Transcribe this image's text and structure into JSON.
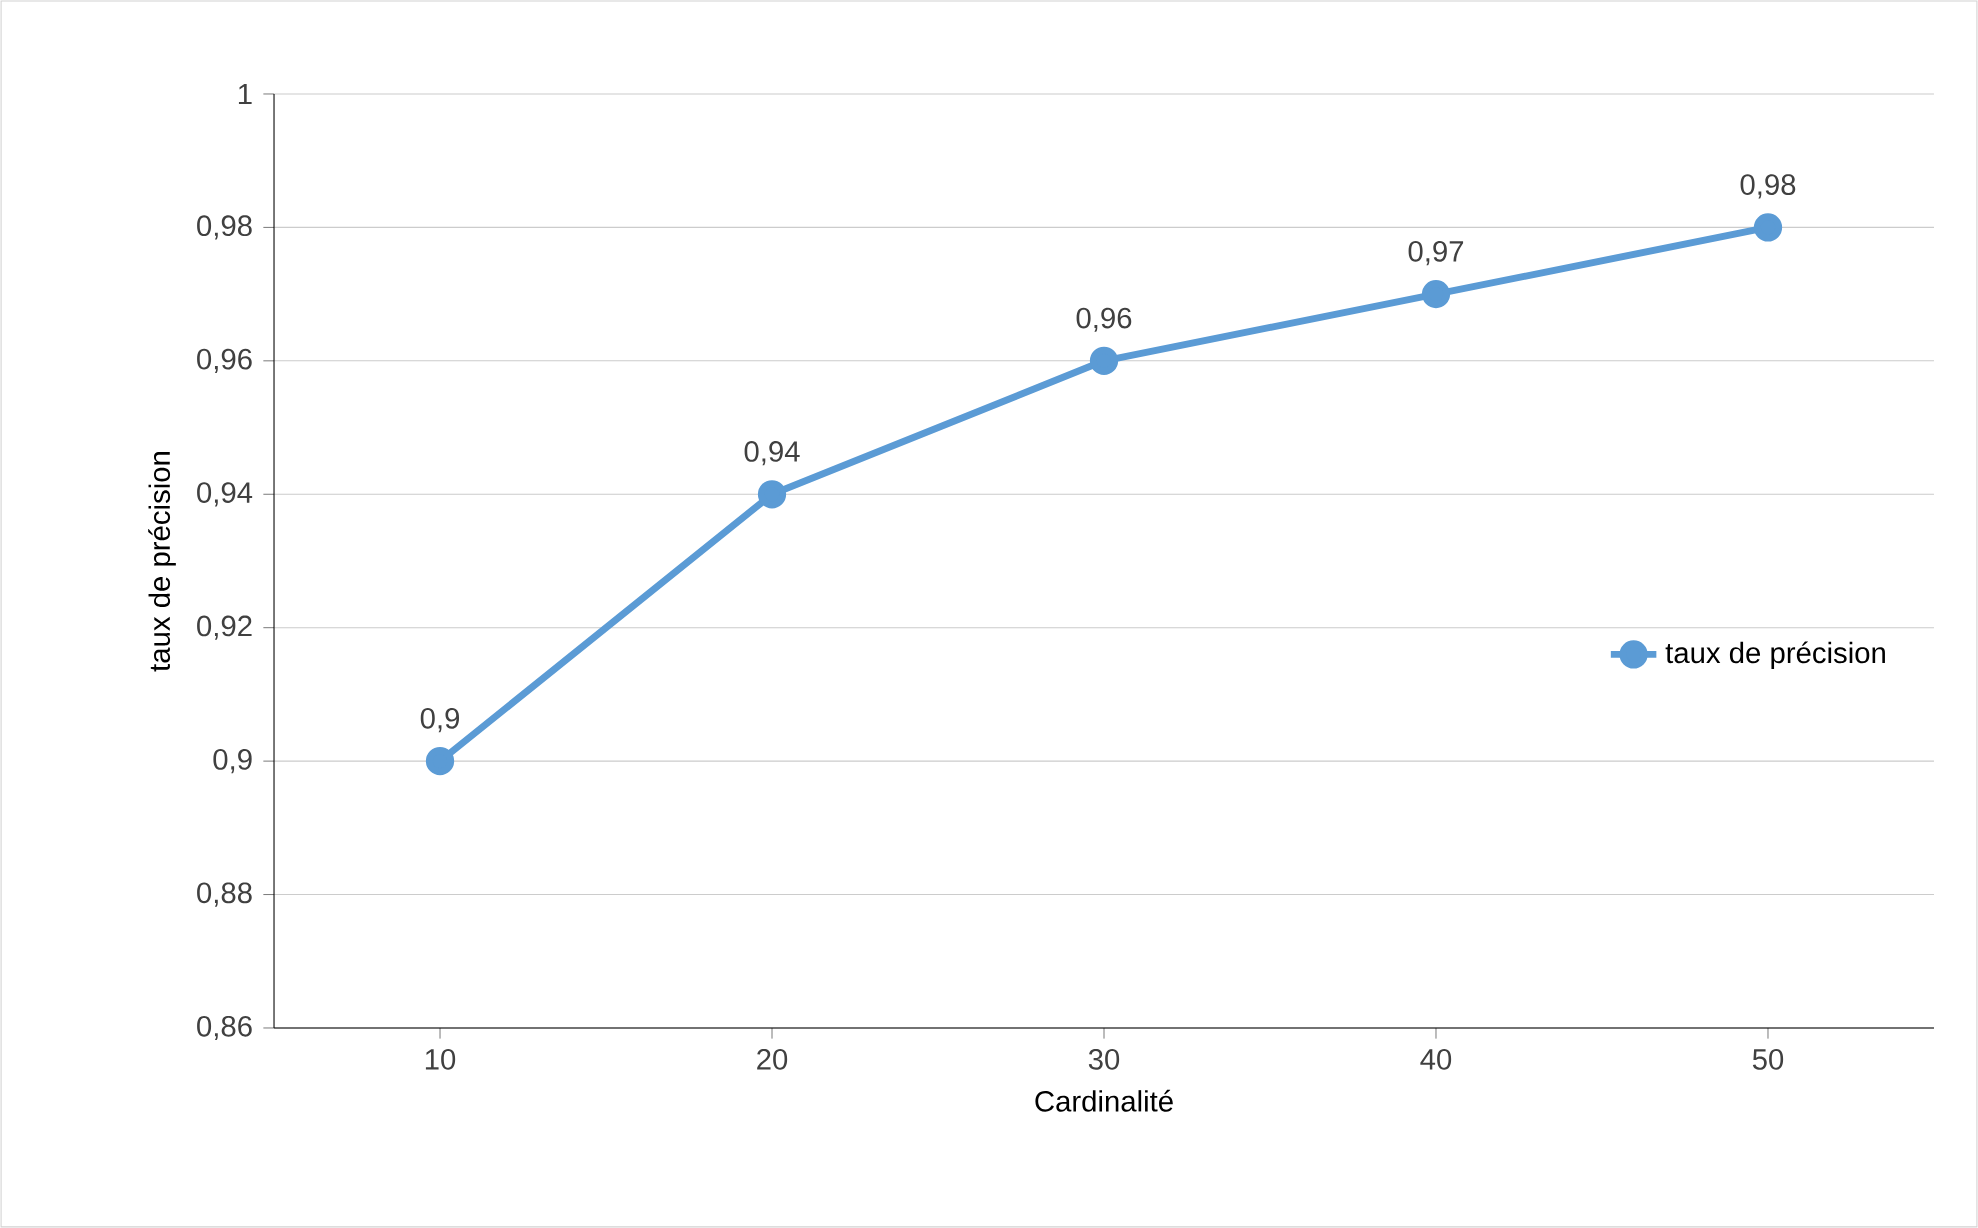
{
  "chart_data": {
    "type": "line",
    "xlabel": "Cardinalité",
    "ylabel": "taux de précision",
    "categories": [
      "10",
      "20",
      "30",
      "40",
      "50"
    ],
    "series": [
      {
        "name": "taux de précision",
        "color": "#5b9bd5",
        "values": [
          0.9,
          0.94,
          0.96,
          0.97,
          0.98
        ],
        "value_labels": [
          "0,9",
          "0,94",
          "0,96",
          "0,97",
          "0,98"
        ]
      }
    ],
    "ylim": [
      0.86,
      1
    ],
    "yticks": [
      {
        "value": 0.86,
        "label": "0,86"
      },
      {
        "value": 0.88,
        "label": "0,88"
      },
      {
        "value": 0.9,
        "label": "0,9"
      },
      {
        "value": 0.92,
        "label": "0,92"
      },
      {
        "value": 0.94,
        "label": "0,94"
      },
      {
        "value": 0.96,
        "label": "0,96"
      },
      {
        "value": 0.98,
        "label": "0,98"
      },
      1
    ],
    "grid": "y",
    "legend": "right",
    "marker": "circle",
    "line_style": "solid"
  }
}
